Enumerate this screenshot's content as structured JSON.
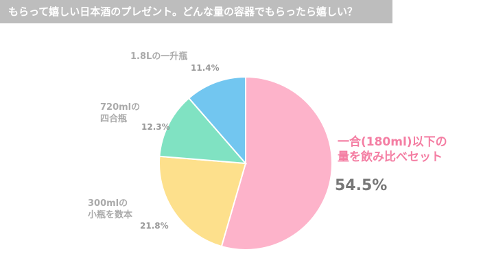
{
  "chart_data": {
    "type": "pie",
    "title": "もらって嬉しい日本酒のプレゼント。どんな量の容器でもらったら嬉しい？",
    "categories": [
      "一合(180ml)以下の\n量を飲み比べセット",
      "300mlの\n小瓶を数本",
      "720mlの\n四合瓶",
      "1.8Lの一升瓶"
    ],
    "values": [
      54.5,
      21.8,
      12.3,
      11.4
    ],
    "value_labels": [
      "54.5%",
      "21.8%",
      "12.3%",
      "11.4%"
    ],
    "colors": [
      "#fdb3ca",
      "#fde08c",
      "#80e2c2",
      "#72c6f0"
    ]
  }
}
